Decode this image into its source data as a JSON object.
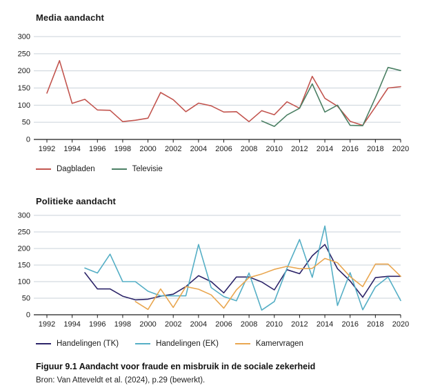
{
  "caption": "Figuur 9.1 Aandacht voor fraude en misbruik in de sociale zekerheid",
  "source": "Bron: Van Atteveldt et al. (2024), p.29 (bewerkt).",
  "colors": {
    "grid": "#c9d2da",
    "axis": "#1a1a1a",
    "dagbladen": "#c2544e",
    "televisie": "#4a7f63",
    "handelingen_tk": "#2b2368",
    "handelingen_ek": "#54aec5",
    "kamervragen": "#e9a64f"
  },
  "chart_data": [
    {
      "type": "line",
      "title": "Media aandacht",
      "xlabel": "",
      "ylabel": "",
      "x_range": [
        1992,
        2020
      ],
      "xticks": [
        1992,
        1994,
        1996,
        1998,
        2000,
        2002,
        2004,
        2006,
        2008,
        2010,
        2012,
        2014,
        2016,
        2018,
        2020
      ],
      "yticks": [
        0,
        50,
        100,
        150,
        200,
        250,
        300
      ],
      "ylim": [
        0,
        300
      ],
      "grid": true,
      "legend_position": "bottom-left",
      "series": [
        {
          "name": "Dagbladen",
          "color": "#c2544e",
          "start_year": 1992,
          "values": [
            135,
            230,
            105,
            117,
            86,
            85,
            52,
            56,
            62,
            137,
            116,
            81,
            106,
            98,
            80,
            81,
            52,
            84,
            72,
            110,
            91,
            184,
            120,
            97,
            53,
            41,
            95,
            150,
            154
          ]
        },
        {
          "name": "Televisie",
          "color": "#4a7f63",
          "start_year": 2009,
          "values": [
            54,
            38,
            71,
            91,
            162,
            80,
            100,
            41,
            40,
            122,
            210,
            201
          ]
        }
      ]
    },
    {
      "type": "line",
      "title": "Politieke aandacht",
      "xlabel": "",
      "ylabel": "",
      "x_range": [
        1992,
        2020
      ],
      "xticks": [
        1992,
        1994,
        1996,
        1998,
        2000,
        2002,
        2004,
        2006,
        2008,
        2010,
        2012,
        2014,
        2016,
        2018,
        2020
      ],
      "yticks": [
        0,
        50,
        100,
        150,
        200,
        250,
        300
      ],
      "ylim": [
        0,
        300
      ],
      "grid": true,
      "legend_position": "bottom-left",
      "series": [
        {
          "name": "Handelingen (TK)",
          "color": "#2b2368",
          "start_year": 1995,
          "values": [
            127,
            78,
            78,
            56,
            45,
            47,
            56,
            62,
            85,
            118,
            100,
            66,
            114,
            114,
            99,
            75,
            136,
            124,
            178,
            212,
            139,
            102,
            53,
            112,
            116,
            116
          ]
        },
        {
          "name": "Handelingen (EK)",
          "color": "#54aec5",
          "start_year": 1995,
          "values": [
            141,
            126,
            183,
            100,
            100,
            71,
            57,
            57,
            57,
            212,
            82,
            55,
            42,
            126,
            14,
            40,
            140,
            227,
            113,
            268,
            28,
            127,
            15,
            84,
            114,
            43
          ]
        },
        {
          "name": "Kamervragen",
          "color": "#e9a64f",
          "start_year": 1999,
          "values": [
            40,
            16,
            78,
            22,
            85,
            77,
            60,
            20,
            75,
            112,
            123,
            137,
            146,
            139,
            140,
            170,
            157,
            115,
            85,
            153,
            153,
            116
          ]
        }
      ]
    }
  ]
}
